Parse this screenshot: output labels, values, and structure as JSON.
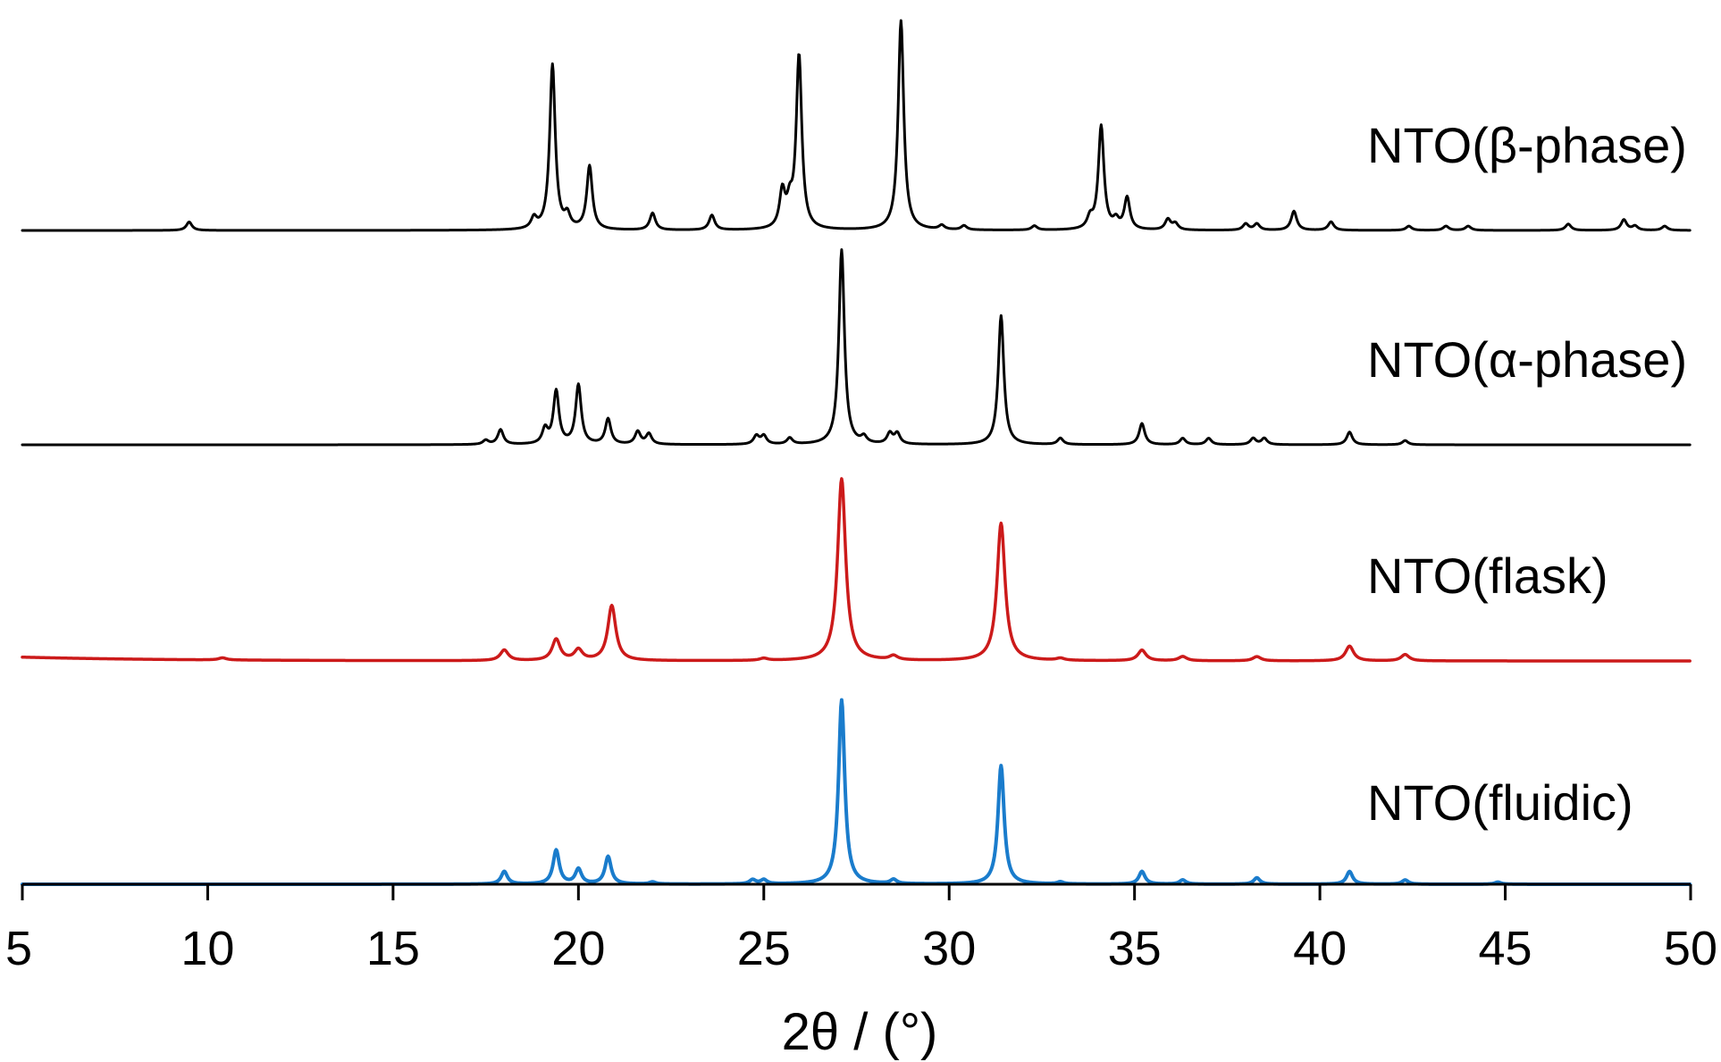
{
  "chart_data": {
    "type": "line",
    "xlabel": "2θ / (°)",
    "xlim": [
      5,
      50
    ],
    "x_ticks": [
      5,
      10,
      15,
      20,
      25,
      30,
      35,
      40,
      45,
      50
    ],
    "grid": false,
    "legend": "inline-right",
    "stacked_offset": true,
    "series": [
      {
        "name": "NTO(β-phase)",
        "color": "#000000",
        "peak_width": 0.09,
        "peaks": [
          [
            9.5,
            0.04
          ],
          [
            18.8,
            0.05
          ],
          [
            19.3,
            0.78
          ],
          [
            19.7,
            0.06
          ],
          [
            20.3,
            0.3
          ],
          [
            22.0,
            0.08
          ],
          [
            23.6,
            0.07
          ],
          [
            25.5,
            0.17
          ],
          [
            25.7,
            0.1
          ],
          [
            25.95,
            0.82
          ],
          [
            28.7,
            0.99
          ],
          [
            29.8,
            0.02
          ],
          [
            30.4,
            0.02
          ],
          [
            32.3,
            0.02
          ],
          [
            33.8,
            0.05
          ],
          [
            34.1,
            0.49
          ],
          [
            34.5,
            0.04
          ],
          [
            34.8,
            0.15
          ],
          [
            35.9,
            0.05
          ],
          [
            36.1,
            0.03
          ],
          [
            38.0,
            0.03
          ],
          [
            38.3,
            0.03
          ],
          [
            39.3,
            0.09
          ],
          [
            40.3,
            0.04
          ],
          [
            42.4,
            0.02
          ],
          [
            43.4,
            0.02
          ],
          [
            44.0,
            0.02
          ],
          [
            46.7,
            0.03
          ],
          [
            48.2,
            0.05
          ],
          [
            48.5,
            0.02
          ],
          [
            49.3,
            0.02
          ]
        ]
      },
      {
        "name": "NTO(α-phase)",
        "color": "#000000",
        "peak_width": 0.09,
        "peaks": [
          [
            17.5,
            0.02
          ],
          [
            17.9,
            0.07
          ],
          [
            19.1,
            0.07
          ],
          [
            19.4,
            0.25
          ],
          [
            20.0,
            0.28
          ],
          [
            20.8,
            0.12
          ],
          [
            21.6,
            0.06
          ],
          [
            21.9,
            0.05
          ],
          [
            24.8,
            0.04
          ],
          [
            25.0,
            0.04
          ],
          [
            25.7,
            0.03
          ],
          [
            27.1,
            0.92
          ],
          [
            27.7,
            0.03
          ],
          [
            28.4,
            0.05
          ],
          [
            28.6,
            0.05
          ],
          [
            31.4,
            0.61
          ],
          [
            33.0,
            0.03
          ],
          [
            35.2,
            0.1
          ],
          [
            36.3,
            0.03
          ],
          [
            37.0,
            0.03
          ],
          [
            38.2,
            0.03
          ],
          [
            38.5,
            0.03
          ],
          [
            40.8,
            0.06
          ],
          [
            42.3,
            0.02
          ]
        ]
      },
      {
        "name": "NTO(flask)",
        "color": "#cc1a1a",
        "peak_width": 0.13,
        "baseline_tilt": 0.018,
        "peaks": [
          [
            10.4,
            0.01
          ],
          [
            18.0,
            0.05
          ],
          [
            19.4,
            0.1
          ],
          [
            20.0,
            0.05
          ],
          [
            20.9,
            0.26
          ],
          [
            25.0,
            0.01
          ],
          [
            27.1,
            0.86
          ],
          [
            28.5,
            0.02
          ],
          [
            31.4,
            0.65
          ],
          [
            33.0,
            0.01
          ],
          [
            35.2,
            0.05
          ],
          [
            36.3,
            0.02
          ],
          [
            38.3,
            0.02
          ],
          [
            40.8,
            0.07
          ],
          [
            42.3,
            0.03
          ]
        ]
      },
      {
        "name": "NTO(fluidic)",
        "color": "#1a7ccc",
        "peak_width": 0.1,
        "peaks": [
          [
            18.0,
            0.06
          ],
          [
            19.4,
            0.16
          ],
          [
            20.0,
            0.07
          ],
          [
            20.8,
            0.13
          ],
          [
            22.0,
            0.01
          ],
          [
            24.7,
            0.02
          ],
          [
            25.0,
            0.02
          ],
          [
            27.1,
            0.87
          ],
          [
            28.5,
            0.02
          ],
          [
            31.4,
            0.56
          ],
          [
            33.0,
            0.01
          ],
          [
            35.2,
            0.06
          ],
          [
            36.3,
            0.02
          ],
          [
            38.3,
            0.03
          ],
          [
            40.8,
            0.06
          ],
          [
            42.3,
            0.02
          ],
          [
            44.8,
            0.01
          ]
        ]
      }
    ]
  }
}
